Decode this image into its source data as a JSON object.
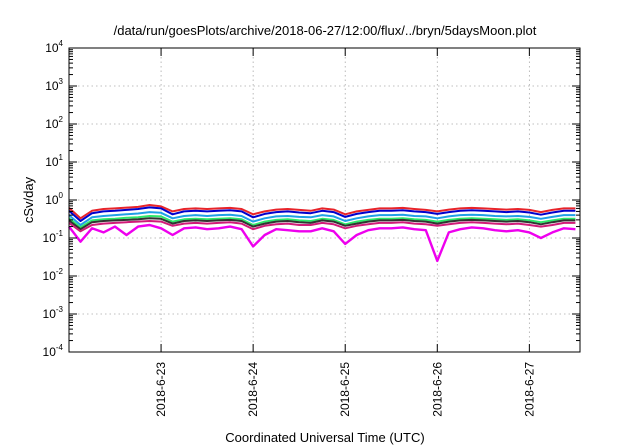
{
  "chart_data": {
    "type": "line",
    "title": "/data/run/goesPlots/archive/2018-06-27/12:00/flux/../bryn/5daysMoon.plot",
    "xlabel": "Coordinated Universal Time (UTC)",
    "ylabel": "cSv/day",
    "y_scale": "log",
    "ylim": [
      0.0001,
      10000
    ],
    "y_ticks": [
      {
        "base": "10",
        "exp": "-4",
        "value": 0.0001
      },
      {
        "base": "10",
        "exp": "-3",
        "value": 0.001
      },
      {
        "base": "10",
        "exp": "-2",
        "value": 0.01
      },
      {
        "base": "10",
        "exp": "-1",
        "value": 0.1
      },
      {
        "base": "10",
        "exp": "0",
        "value": 1
      },
      {
        "base": "10",
        "exp": "1",
        "value": 10
      },
      {
        "base": "10",
        "exp": "2",
        "value": 100
      },
      {
        "base": "10",
        "exp": "3",
        "value": 1000
      },
      {
        "base": "10",
        "exp": "4",
        "value": 10000
      }
    ],
    "xlim": [
      "2018-06-22T00:00",
      "2018-06-27T13:12"
    ],
    "x_ticks": [
      {
        "label": "2018-6-23",
        "value": "2018-06-23T00:00"
      },
      {
        "label": "2018-6-24",
        "value": "2018-06-24T00:00"
      },
      {
        "label": "2018-6-25",
        "value": "2018-06-25T00:00"
      },
      {
        "label": "2018-6-26",
        "value": "2018-06-26T00:00"
      },
      {
        "label": "2018-6-27",
        "value": "2018-06-27T00:00"
      }
    ],
    "grid": true,
    "legend": "none",
    "x_hours": [
      0,
      3,
      6,
      9,
      12,
      15,
      18,
      21,
      24,
      27,
      30,
      33,
      36,
      39,
      42,
      45,
      48,
      51,
      54,
      57,
      60,
      63,
      66,
      69,
      72,
      75,
      78,
      81,
      84,
      87,
      90,
      93,
      96,
      99,
      102,
      105,
      108,
      111,
      114,
      117,
      120,
      123,
      126,
      129,
      132
    ],
    "series": [
      {
        "color": "#e8242a",
        "values": [
          0.62,
          0.33,
          0.52,
          0.58,
          0.6,
          0.63,
          0.66,
          0.74,
          0.68,
          0.5,
          0.58,
          0.6,
          0.58,
          0.6,
          0.62,
          0.58,
          0.42,
          0.5,
          0.56,
          0.58,
          0.55,
          0.52,
          0.6,
          0.56,
          0.42,
          0.5,
          0.55,
          0.6,
          0.6,
          0.62,
          0.58,
          0.55,
          0.5,
          0.56,
          0.6,
          0.62,
          0.6,
          0.58,
          0.56,
          0.58,
          0.55,
          0.48,
          0.55,
          0.6,
          0.6
        ]
      },
      {
        "color": "#0000cc",
        "values": [
          0.52,
          0.28,
          0.45,
          0.5,
          0.52,
          0.55,
          0.58,
          0.64,
          0.6,
          0.42,
          0.5,
          0.52,
          0.5,
          0.52,
          0.54,
          0.5,
          0.35,
          0.43,
          0.48,
          0.5,
          0.47,
          0.45,
          0.52,
          0.48,
          0.36,
          0.43,
          0.48,
          0.52,
          0.52,
          0.54,
          0.5,
          0.48,
          0.43,
          0.48,
          0.52,
          0.54,
          0.52,
          0.5,
          0.48,
          0.5,
          0.47,
          0.41,
          0.47,
          0.52,
          0.52
        ]
      },
      {
        "color": "#1fa0e6",
        "values": [
          0.4,
          0.22,
          0.35,
          0.38,
          0.4,
          0.42,
          0.44,
          0.48,
          0.46,
          0.33,
          0.38,
          0.4,
          0.38,
          0.4,
          0.41,
          0.38,
          0.27,
          0.33,
          0.37,
          0.38,
          0.36,
          0.35,
          0.4,
          0.37,
          0.28,
          0.33,
          0.37,
          0.4,
          0.4,
          0.41,
          0.38,
          0.37,
          0.33,
          0.37,
          0.4,
          0.41,
          0.4,
          0.38,
          0.37,
          0.38,
          0.36,
          0.32,
          0.36,
          0.4,
          0.4
        ]
      },
      {
        "color": "#2ee86a",
        "values": [
          0.33,
          0.19,
          0.29,
          0.31,
          0.32,
          0.34,
          0.35,
          0.38,
          0.37,
          0.27,
          0.31,
          0.32,
          0.31,
          0.32,
          0.33,
          0.31,
          0.22,
          0.27,
          0.3,
          0.31,
          0.29,
          0.28,
          0.32,
          0.3,
          0.23,
          0.27,
          0.3,
          0.32,
          0.32,
          0.33,
          0.31,
          0.3,
          0.27,
          0.3,
          0.32,
          0.33,
          0.32,
          0.31,
          0.3,
          0.31,
          0.29,
          0.26,
          0.29,
          0.32,
          0.32
        ]
      },
      {
        "color": "#333333",
        "values": [
          0.29,
          0.17,
          0.26,
          0.28,
          0.29,
          0.3,
          0.31,
          0.33,
          0.32,
          0.24,
          0.28,
          0.29,
          0.28,
          0.29,
          0.3,
          0.28,
          0.2,
          0.24,
          0.27,
          0.28,
          0.26,
          0.25,
          0.29,
          0.27,
          0.21,
          0.24,
          0.27,
          0.29,
          0.29,
          0.3,
          0.28,
          0.27,
          0.24,
          0.27,
          0.29,
          0.3,
          0.29,
          0.28,
          0.27,
          0.28,
          0.26,
          0.23,
          0.26,
          0.29,
          0.29
        ]
      },
      {
        "color": "#d01c78",
        "values": [
          0.25,
          0.15,
          0.22,
          0.24,
          0.25,
          0.26,
          0.27,
          0.28,
          0.27,
          0.21,
          0.24,
          0.25,
          0.24,
          0.25,
          0.26,
          0.24,
          0.17,
          0.21,
          0.23,
          0.24,
          0.22,
          0.22,
          0.25,
          0.23,
          0.18,
          0.21,
          0.23,
          0.25,
          0.25,
          0.26,
          0.24,
          0.23,
          0.21,
          0.23,
          0.25,
          0.26,
          0.25,
          0.24,
          0.23,
          0.24,
          0.22,
          0.2,
          0.22,
          0.25,
          0.25
        ]
      },
      {
        "color": "#ee00ee",
        "values": [
          0.2,
          0.08,
          0.18,
          0.14,
          0.2,
          0.12,
          0.2,
          0.22,
          0.18,
          0.12,
          0.18,
          0.19,
          0.17,
          0.18,
          0.2,
          0.17,
          0.06,
          0.12,
          0.17,
          0.16,
          0.15,
          0.15,
          0.18,
          0.15,
          0.07,
          0.12,
          0.16,
          0.18,
          0.18,
          0.19,
          0.17,
          0.16,
          0.025,
          0.14,
          0.17,
          0.19,
          0.18,
          0.16,
          0.15,
          0.16,
          0.14,
          0.1,
          0.14,
          0.18,
          0.17
        ]
      }
    ]
  }
}
